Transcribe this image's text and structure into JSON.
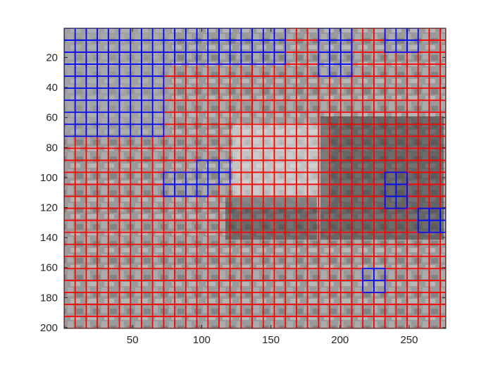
{
  "chart_data": {
    "type": "heatmap",
    "title": "",
    "xlabel": "",
    "ylabel": "",
    "xlim": [
      0.5,
      276.5
    ],
    "ylim": [
      0.5,
      200.5
    ],
    "y_direction": "reversed",
    "x_ticks": [
      50,
      100,
      150,
      200,
      250
    ],
    "y_ticks": [
      20,
      40,
      60,
      80,
      100,
      120,
      140,
      160,
      180,
      200
    ],
    "x_tick_labels": [
      "50",
      "100",
      "150",
      "200",
      "250"
    ],
    "y_tick_labels": [
      "20",
      "40",
      "60",
      "80",
      "100",
      "120",
      "140",
      "160",
      "180",
      "200"
    ],
    "image": "grayscale photo (partially covered by grid)",
    "block_size": 8,
    "grid_overlay": {
      "default_color": "#ff0000",
      "highlight_color": "#0000ff",
      "line_width": 1.6
    },
    "blue_regions": [
      {
        "x": [
          0,
          72
        ],
        "y": [
          0,
          72
        ]
      },
      {
        "x": [
          72,
          160
        ],
        "y": [
          0,
          24
        ]
      },
      {
        "x": [
          184,
          208
        ],
        "y": [
          0,
          32
        ]
      },
      {
        "x": [
          232,
          256
        ],
        "y": [
          0,
          16
        ]
      },
      {
        "x": [
          72,
          104
        ],
        "y": [
          96,
          112
        ]
      },
      {
        "x": [
          96,
          120
        ],
        "y": [
          88,
          104
        ]
      },
      {
        "x": [
          232,
          248
        ],
        "y": [
          96,
          120
        ]
      },
      {
        "x": [
          256,
          276
        ],
        "y": [
          120,
          136
        ]
      },
      {
        "x": [
          216,
          232
        ],
        "y": [
          160,
          176
        ]
      }
    ]
  }
}
